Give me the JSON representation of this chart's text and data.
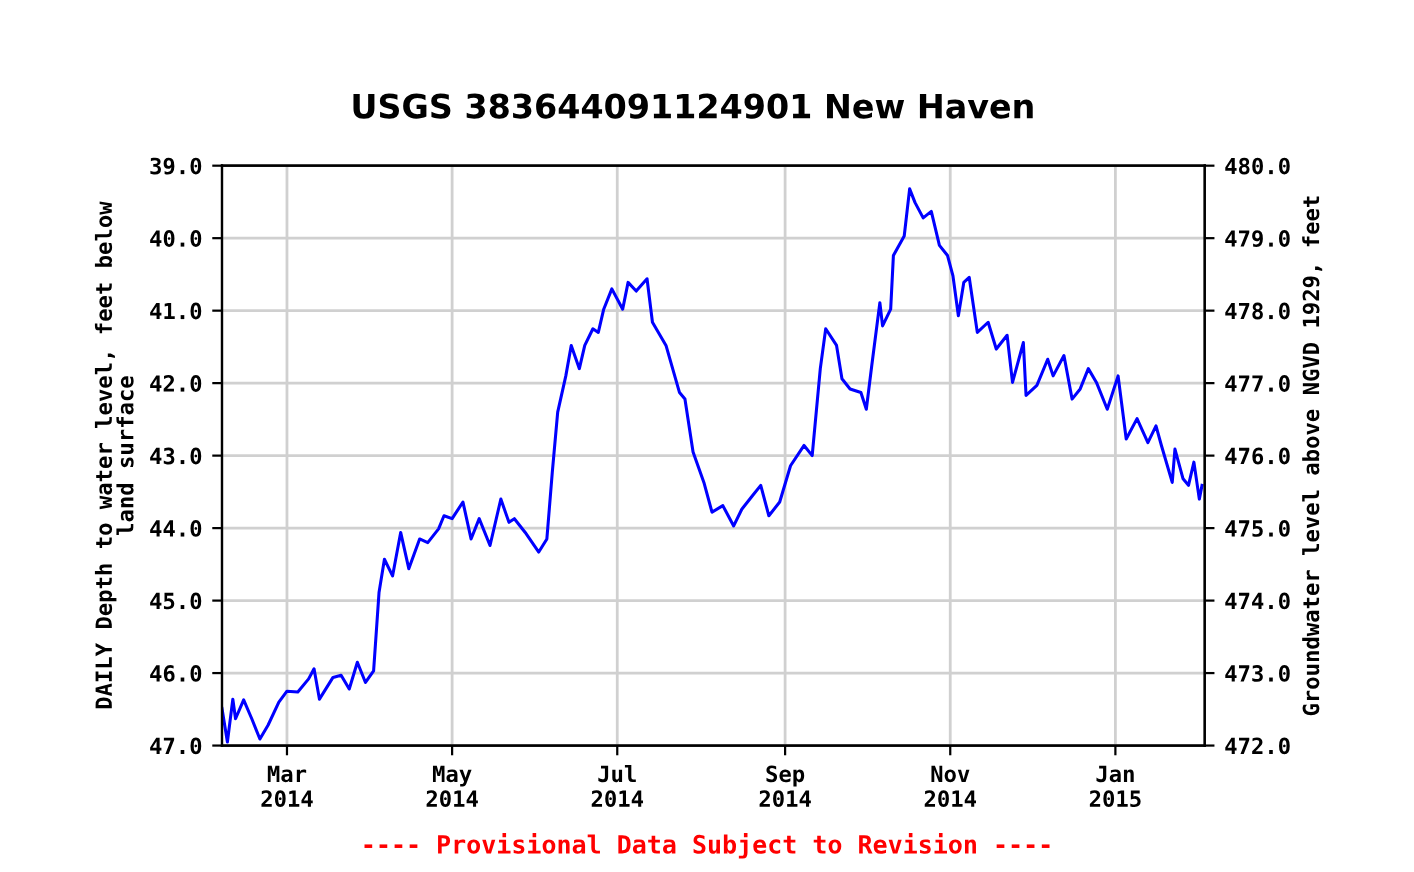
{
  "chart_data": {
    "type": "line",
    "title": "USGS 383644091124901 New Haven",
    "ylabel": "DAILY Depth to water level, feet below\nland surface",
    "y2label": "Groundwater level above NGVD 1929, feet",
    "annotations": [
      "---- Provisional Data Subject to Revision ----"
    ],
    "series": [
      {
        "color": "#0000ff",
        "x": [
          "2014-02-05",
          "2014-02-07",
          "2014-02-09",
          "2014-02-10",
          "2014-02-13",
          "2014-02-16",
          "2014-02-19",
          "2014-02-22",
          "2014-02-26",
          "2014-03-01",
          "2014-03-05",
          "2014-03-09",
          "2014-03-11",
          "2014-03-13",
          "2014-03-18",
          "2014-03-21",
          "2014-03-24",
          "2014-03-27",
          "2014-03-30",
          "2014-04-02",
          "2014-04-04",
          "2014-04-06",
          "2014-04-09",
          "2014-04-12",
          "2014-04-15",
          "2014-04-19",
          "2014-04-22",
          "2014-04-26",
          "2014-04-28",
          "2014-05-01",
          "2014-05-05",
          "2014-05-08",
          "2014-05-11",
          "2014-05-15",
          "2014-05-19",
          "2014-05-22",
          "2014-05-24",
          "2014-05-28",
          "2014-06-02",
          "2014-06-05",
          "2014-06-07",
          "2014-06-09",
          "2014-06-12",
          "2014-06-14",
          "2014-06-17",
          "2014-06-19",
          "2014-06-22",
          "2014-06-24",
          "2014-06-26",
          "2014-06-29",
          "2014-07-03",
          "2014-07-05",
          "2014-07-08",
          "2014-07-12",
          "2014-07-14",
          "2014-07-19",
          "2014-07-24",
          "2014-07-26",
          "2014-07-29",
          "2014-08-02",
          "2014-08-05",
          "2014-08-09",
          "2014-08-13",
          "2014-08-16",
          "2014-08-20",
          "2014-08-23",
          "2014-08-26",
          "2014-08-30",
          "2014-09-03",
          "2014-09-08",
          "2014-09-11",
          "2014-09-14",
          "2014-09-16",
          "2014-09-20",
          "2014-09-22",
          "2014-09-25",
          "2014-09-29",
          "2014-10-01",
          "2014-10-03",
          "2014-10-06",
          "2014-10-07",
          "2014-10-10",
          "2014-10-11",
          "2014-10-15",
          "2014-10-17",
          "2014-10-19",
          "2014-10-22",
          "2014-10-25",
          "2014-10-28",
          "2014-10-31",
          "2014-11-02",
          "2014-11-04",
          "2014-11-06",
          "2014-11-08",
          "2014-11-11",
          "2014-11-15",
          "2014-11-18",
          "2014-11-22",
          "2014-11-24",
          "2014-11-28",
          "2014-11-29",
          "2014-12-03",
          "2014-12-07",
          "2014-12-09",
          "2014-12-13",
          "2014-12-16",
          "2014-12-19",
          "2014-12-22",
          "2014-12-25",
          "2014-12-29",
          "2015-01-02",
          "2015-01-05",
          "2015-01-09",
          "2015-01-13",
          "2015-01-16",
          "2015-01-18",
          "2015-01-22",
          "2015-01-23",
          "2015-01-26",
          "2015-01-28",
          "2015-01-30",
          "2015-02-01",
          "2015-02-02"
        ],
        "values": [
          46.49,
          46.95,
          46.36,
          46.63,
          46.37,
          46.63,
          46.91,
          46.72,
          46.4,
          46.25,
          46.26,
          46.08,
          45.94,
          46.36,
          46.06,
          46.03,
          46.22,
          45.85,
          46.13,
          45.97,
          44.89,
          44.43,
          44.66,
          44.06,
          44.56,
          44.15,
          44.2,
          44.01,
          43.83,
          43.87,
          43.64,
          44.15,
          43.87,
          44.24,
          43.6,
          43.92,
          43.87,
          44.06,
          44.33,
          44.15,
          43.23,
          42.4,
          41.9,
          41.48,
          41.8,
          41.48,
          41.25,
          41.3,
          40.98,
          40.7,
          40.98,
          40.61,
          40.73,
          40.56,
          41.16,
          41.48,
          42.13,
          42.22,
          42.95,
          43.37,
          43.78,
          43.69,
          43.97,
          43.74,
          43.55,
          43.41,
          43.83,
          43.64,
          43.14,
          42.86,
          43.0,
          41.8,
          41.25,
          41.48,
          41.94,
          42.08,
          42.13,
          42.36,
          41.76,
          40.89,
          41.21,
          40.98,
          40.24,
          39.97,
          39.32,
          39.51,
          39.72,
          39.63,
          40.1,
          40.24,
          40.52,
          41.07,
          40.61,
          40.54,
          41.3,
          41.16,
          41.53,
          41.34,
          41.99,
          41.44,
          42.17,
          42.03,
          41.67,
          41.9,
          41.62,
          42.22,
          42.08,
          41.8,
          41.99,
          42.36,
          41.9,
          42.77,
          42.49,
          42.82,
          42.59,
          42.86,
          43.37,
          42.91,
          43.32,
          43.41,
          43.09,
          43.6,
          43.41
        ]
      }
    ],
    "xlim": [
      "2014-02-05",
      "2015-02-03"
    ],
    "xticks": [
      {
        "value": "2014-03-01",
        "label": "Mar\n2014"
      },
      {
        "value": "2014-05-01",
        "label": "May\n2014"
      },
      {
        "value": "2014-07-01",
        "label": "Jul\n2014"
      },
      {
        "value": "2014-09-01",
        "label": "Sep\n2014"
      },
      {
        "value": "2014-11-01",
        "label": "Nov\n2014"
      },
      {
        "value": "2015-01-01",
        "label": "Jan\n2015"
      }
    ],
    "ylim": [
      47,
      39
    ],
    "yticks": [
      {
        "value": 39,
        "label": "39.0"
      },
      {
        "value": 40,
        "label": "40.0"
      },
      {
        "value": 41,
        "label": "41.0"
      },
      {
        "value": 42,
        "label": "42.0"
      },
      {
        "value": 43,
        "label": "43.0"
      },
      {
        "value": 44,
        "label": "44.0"
      },
      {
        "value": 45,
        "label": "45.0"
      },
      {
        "value": 46,
        "label": "46.0"
      },
      {
        "value": 47,
        "label": "47.0"
      }
    ],
    "y2lim": [
      472,
      480
    ],
    "y2ticks": [
      {
        "value": 472,
        "label": "472.0"
      },
      {
        "value": 473,
        "label": "473.0"
      },
      {
        "value": 474,
        "label": "474.0"
      },
      {
        "value": 475,
        "label": "475.0"
      },
      {
        "value": 476,
        "label": "476.0"
      },
      {
        "value": 477,
        "label": "477.0"
      },
      {
        "value": 478,
        "label": "478.0"
      },
      {
        "value": 479,
        "label": "479.0"
      },
      {
        "value": 480,
        "label": "480.0"
      }
    ],
    "grid": true,
    "marker": "none",
    "line_style": "solid"
  }
}
